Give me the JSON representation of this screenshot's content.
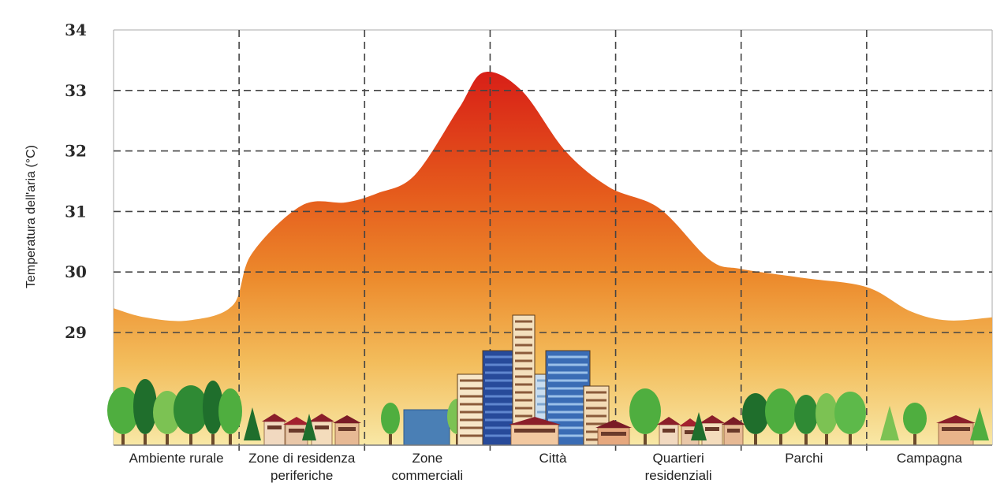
{
  "chart_data": {
    "type": "area",
    "title": "",
    "xlabel": "",
    "ylabel": "Temperatura dell'aria (°C)",
    "ylim": [
      28,
      34
    ],
    "yticks": [
      29,
      30,
      31,
      32,
      33,
      34
    ],
    "grid": true,
    "categories": [
      "Ambiente rurale",
      "Zone di residenza periferiche",
      "Zone commerciali",
      "Città",
      "Quartieri residenziali",
      "Parchi",
      "Campagna"
    ],
    "category_labels": [
      [
        "Ambiente rurale"
      ],
      [
        "Zone di residenza",
        "periferiche"
      ],
      [
        "Zone",
        "commerciali"
      ],
      [
        "Città"
      ],
      [
        "Quartieri",
        "residenziali"
      ],
      [
        "Parchi"
      ],
      [
        "Campagna"
      ]
    ],
    "profile": {
      "x": [
        0.0,
        0.25,
        0.6,
        0.95,
        1.1,
        1.5,
        1.85,
        2.1,
        2.4,
        2.75,
        2.95,
        3.25,
        3.6,
        3.95,
        4.35,
        4.75,
        5.0,
        5.5,
        6.0,
        6.35,
        6.65,
        7.0
      ],
      "y": [
        29.4,
        29.25,
        29.2,
        29.45,
        30.3,
        31.1,
        31.15,
        31.3,
        31.6,
        32.7,
        33.3,
        33.0,
        32.0,
        31.4,
        31.05,
        30.2,
        30.05,
        29.9,
        29.75,
        29.35,
        29.2,
        29.25
      ]
    },
    "colors": {
      "peak": "#d81f17",
      "mid": "#e8701f",
      "base": "#f6dc8a",
      "grid": "#444444",
      "trees": "#3a9a3a",
      "buildings": "#3a5a9a"
    }
  }
}
